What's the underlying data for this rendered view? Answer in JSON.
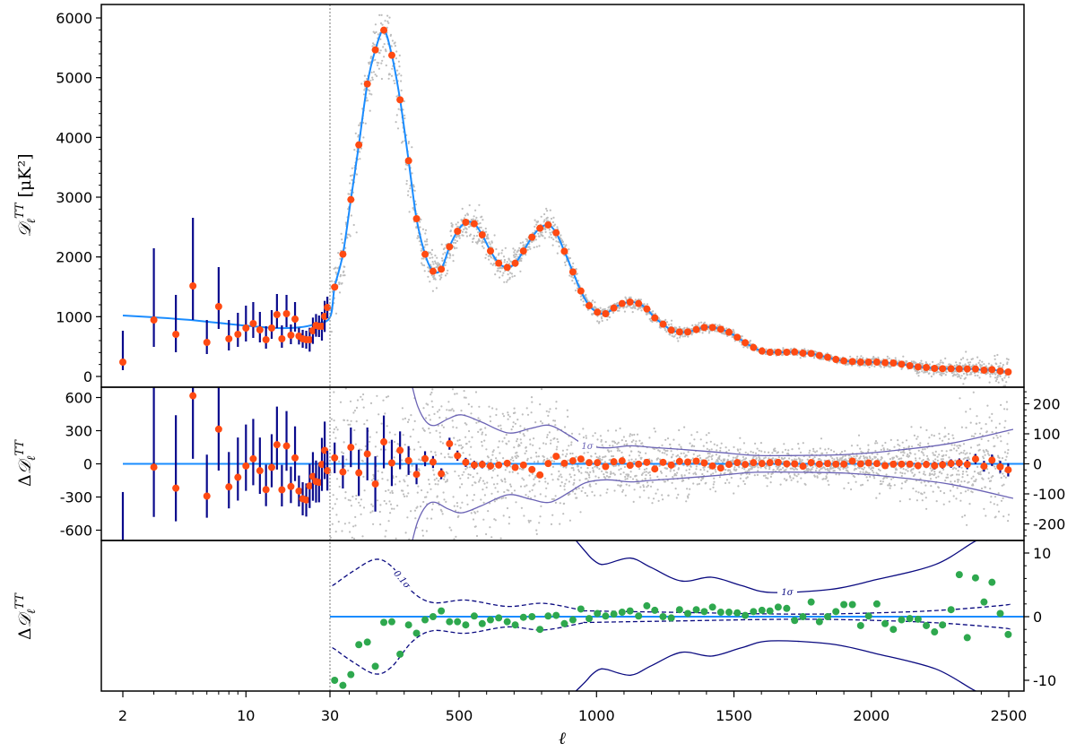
{
  "chart_data": {
    "type": "scatter",
    "title": "",
    "xlabel": "ℓ",
    "x_scale": "log for ℓ ≤ 30, linear for ℓ > 30",
    "x_ticks": [
      "2",
      "10",
      "30",
      "500",
      "1000",
      "1500",
      "2000",
      "2500"
    ],
    "x_tick_values": [
      2,
      10,
      30,
      500,
      1000,
      1500,
      2000,
      2500
    ],
    "split_ell": 30,
    "panels": {
      "top": {
        "ylabel": {
          "prefix": "",
          "symbol": "𝒟",
          "sub": "ℓ",
          "sup": "TT",
          "unit": " [μK²]"
        },
        "ylim": [
          -200,
          6200
        ],
        "y_ticks": [
          "0",
          "1000",
          "2000",
          "3000",
          "4000",
          "5000",
          "6000"
        ],
        "y_tick_values": [
          0,
          1000,
          2000,
          3000,
          4000,
          5000,
          6000
        ]
      },
      "middle": {
        "ylabel": {
          "prefix": "Δ",
          "symbol": "𝒟",
          "sub": "ℓ",
          "sup": "TT"
        },
        "ylim_left": [
          -690,
          690
        ],
        "y_ticks_left": [
          "600",
          "300",
          "0",
          "-300",
          "-600"
        ],
        "y_tick_values_left": [
          600,
          300,
          0,
          -300,
          -600
        ],
        "ylim_right": [
          -255,
          255
        ],
        "y_ticks_right": [
          "200",
          "100",
          "0",
          "-100",
          "-200"
        ],
        "y_tick_values_right": [
          200,
          100,
          0,
          -100,
          -200
        ],
        "sigma_label": "1σ"
      },
      "bottom": {
        "ylabel": {
          "prefix": "Δ",
          "symbol": "𝒟",
          "sub": "ℓ",
          "sup": "TT"
        },
        "ylim_right": [
          -12,
          12
        ],
        "y_ticks_right": [
          "10",
          "0",
          "-10"
        ],
        "y_tick_values_right": [
          10,
          0,
          -10
        ],
        "sigma_label": "1σ",
        "dashed_label": "0.1σ"
      }
    },
    "low_ell": {
      "ell": [
        2,
        3,
        4,
        5,
        6,
        7,
        8,
        9,
        10,
        11,
        12,
        13,
        14,
        15,
        16,
        17,
        18,
        19,
        20,
        21,
        22,
        23,
        24,
        25,
        26,
        27,
        28,
        29
      ],
      "D": [
        240,
        945,
        705,
        1515,
        570,
        1170,
        630,
        705,
        810,
        885,
        780,
        615,
        810,
        1035,
        630,
        1050,
        690,
        960,
        675,
        630,
        615,
        615,
        765,
        855,
        840,
        840,
        1005,
        1155
      ],
      "err_lo": [
        135,
        450,
        300,
        570,
        195,
        375,
        195,
        210,
        225,
        240,
        210,
        150,
        180,
        225,
        150,
        225,
        150,
        210,
        140,
        150,
        150,
        200,
        220,
        190,
        180,
        240,
        260,
        180
      ],
      "err_hi": [
        525,
        1200,
        660,
        1140,
        375,
        660,
        315,
        360,
        375,
        360,
        300,
        225,
        300,
        345,
        225,
        315,
        180,
        285,
        140,
        150,
        150,
        200,
        220,
        190,
        180,
        240,
        260,
        180
      ],
      "residual": [
        -780,
        -30,
        -220,
        616,
        -292,
        314,
        -208,
        -122,
        -19,
        46,
        -62,
        -233,
        -32,
        173,
        -235,
        162,
        -205,
        54,
        -246,
        -316,
        -327,
        -200,
        -114,
        -160,
        -168,
        -5,
        122,
        -62
      ]
    },
    "binned": {
      "ell": [
        47,
        77,
        106,
        135,
        166,
        195,
        226,
        255,
        285,
        316,
        345,
        376,
        405,
        435,
        465,
        494,
        524,
        555,
        584,
        614,
        644,
        675,
        704,
        734,
        765,
        794,
        824,
        853,
        883,
        914,
        943,
        973,
        1003,
        1033,
        1063,
        1093,
        1122,
        1153,
        1183,
        1212,
        1242,
        1272,
        1302,
        1332,
        1363,
        1392,
        1422,
        1452,
        1482,
        1512,
        1541,
        1571,
        1602,
        1631,
        1661,
        1692,
        1721,
        1751,
        1781,
        1811,
        1841,
        1871,
        1900,
        1931,
        1961,
        1990,
        2020,
        2050,
        2080,
        2110,
        2140,
        2170,
        2200,
        2230,
        2259,
        2290,
        2320,
        2349,
        2379,
        2410,
        2439,
        2469,
        2498
      ],
      "D": [
        1495,
        2045,
        2960,
        3875,
        4895,
        5465,
        5795,
        5375,
        4630,
        3610,
        2640,
        2045,
        1760,
        1795,
        2170,
        2430,
        2580,
        2555,
        2370,
        2100,
        1895,
        1825,
        1895,
        2100,
        2330,
        2480,
        2535,
        2405,
        2095,
        1750,
        1430,
        1185,
        1075,
        1050,
        1145,
        1220,
        1245,
        1220,
        1130,
        980,
        875,
        775,
        745,
        745,
        785,
        820,
        820,
        790,
        740,
        655,
        565,
        485,
        425,
        405,
        405,
        405,
        410,
        390,
        385,
        350,
        320,
        285,
        260,
        250,
        240,
        240,
        240,
        230,
        225,
        205,
        180,
        160,
        150,
        135,
        130,
        130,
        125,
        125,
        125,
        105,
        115,
        90,
        75
      ],
      "residual": [
        20,
        -27,
        55,
        -30,
        33,
        -67,
        73,
        3,
        45,
        11,
        -35,
        17,
        6,
        -33,
        67,
        27,
        5,
        -4,
        -2,
        -7,
        -4,
        2,
        -12,
        -4,
        -19,
        -37,
        1,
        25,
        2,
        10,
        16,
        4,
        4,
        -9,
        7,
        10,
        -5,
        -1,
        5,
        -17,
        5,
        -4,
        8,
        6,
        9,
        3,
        -7,
        -14,
        -2,
        4,
        -2,
        4,
        1,
        4,
        5,
        0,
        0,
        -8,
        4,
        -1,
        1,
        -1,
        -1,
        9,
        0,
        3,
        1,
        -6,
        -1,
        -1,
        -1,
        -6,
        -2,
        -6,
        -3,
        1,
        3,
        -2,
        16,
        -8,
        12,
        -10,
        -20
      ],
      "residual_err": [
        51,
        55,
        66,
        77,
        88,
        92,
        88,
        77,
        63,
        48,
        33,
        25,
        20,
        18,
        20,
        17,
        15,
        14,
        13,
        12,
        11,
        10,
        10,
        9,
        9,
        9,
        9,
        8,
        8,
        8,
        8,
        8,
        8,
        8,
        7,
        7,
        7,
        7,
        7,
        7,
        7,
        7,
        7,
        7,
        7,
        7,
        7,
        7,
        7,
        7,
        7,
        7,
        8,
        8,
        8,
        8,
        8,
        8,
        8,
        8,
        8,
        8,
        9,
        9,
        9,
        9,
        10,
        10,
        10,
        11,
        11,
        12,
        12,
        13,
        13,
        14,
        15,
        16,
        17,
        18,
        19,
        20,
        22
      ],
      "bottom_residual": [
        -10.0,
        -10.8,
        -9.1,
        -4.4,
        -4.0,
        -7.8,
        -0.9,
        -0.8,
        -5.9,
        -1.3,
        -2.6,
        -0.5,
        0.0,
        0.9,
        -0.8,
        -0.8,
        -1.3,
        0.1,
        -1.1,
        -0.5,
        -0.2,
        -0.8,
        -1.3,
        -0.1,
        0.0,
        -2.0,
        0.1,
        0.2,
        -1.1,
        -0.5,
        1.2,
        -0.3,
        0.5,
        0.1,
        0.4,
        0.7,
        0.9,
        0.1,
        1.7,
        1.0,
        0.0,
        -0.2,
        1.1,
        0.5,
        1.1,
        0.8,
        1.5,
        0.7,
        0.7,
        0.6,
        0.2,
        0.8,
        1.0,
        0.9,
        1.5,
        1.3,
        -0.6,
        0.0,
        2.3,
        -0.8,
        0.0,
        0.8,
        1.9,
        1.9,
        -1.4,
        0.1,
        2.0,
        -1.1,
        -2.0,
        -0.5,
        -0.3,
        -0.4,
        -1.4,
        -2.4,
        -1.3,
        1.1,
        6.6,
        -3.3,
        6.1,
        2.3,
        5.4,
        0.5,
        -2.8
      ]
    },
    "theory_low_ell": {
      "ell": [
        2,
        3,
        4,
        5,
        7,
        10,
        15,
        20,
        25,
        30
      ],
      "D": [
        1020,
        990,
        965,
        940,
        895,
        850,
        810,
        820,
        880,
        990
      ]
    },
    "sigma_middle": {
      "ell": [
        330,
        350,
        380,
        412,
        460,
        510,
        580,
        678,
        760,
        830,
        900,
        960,
        1037,
        1124,
        1200,
        1309,
        1450,
        1580,
        1750,
        1906,
        2070,
        2288,
        2516
      ],
      "value": [
        260,
        190,
        140,
        128,
        150,
        163,
        140,
        103,
        118,
        128,
        95,
        63,
        53,
        60,
        55,
        48,
        38,
        28,
        28,
        31,
        43,
        68,
        115
      ]
    },
    "sigma_bottom": {
      "ell": [
        925,
        960,
        983,
        1010,
        1037,
        1124,
        1200,
        1309,
        1418,
        1527,
        1635,
        1853,
        2016,
        2233,
        2380,
        2420
      ],
      "value": [
        13,
        10.2,
        9.1,
        8.3,
        8.3,
        9.2,
        7.7,
        5.6,
        6.2,
        4.9,
        3.8,
        4.3,
        5.8,
        8.2,
        11.9,
        13
      ]
    },
    "sigma01_bottom": {
      "ell": [
        40,
        47,
        113,
        194,
        254,
        330,
        406,
        525,
        677,
        807,
        949,
        983,
        1309,
        1744,
        2070,
        2288,
        2483,
        2500
      ],
      "value": [
        5.0,
        5.1,
        7.1,
        9.0,
        7.9,
        3.9,
        2.2,
        2.6,
        1.6,
        2.1,
        1.0,
        0.9,
        0.66,
        0.4,
        0.66,
        1.1,
        1.8,
        2.0
      ]
    },
    "unbinned_scatter": {
      "ell_min": 30,
      "ell_max": 2500,
      "low_ell_sigma": 300
    },
    "colors": {
      "theory": "#1a8cff",
      "data_points": "#ff4a12",
      "error_bars": "#0a0a8c",
      "unbinned": "#bdbdbd",
      "sigma_middle": "#6b63b5",
      "sigma_bottom": "#0a0a80",
      "bottom_points": "#2ea84e",
      "split_line": "#999999"
    }
  }
}
